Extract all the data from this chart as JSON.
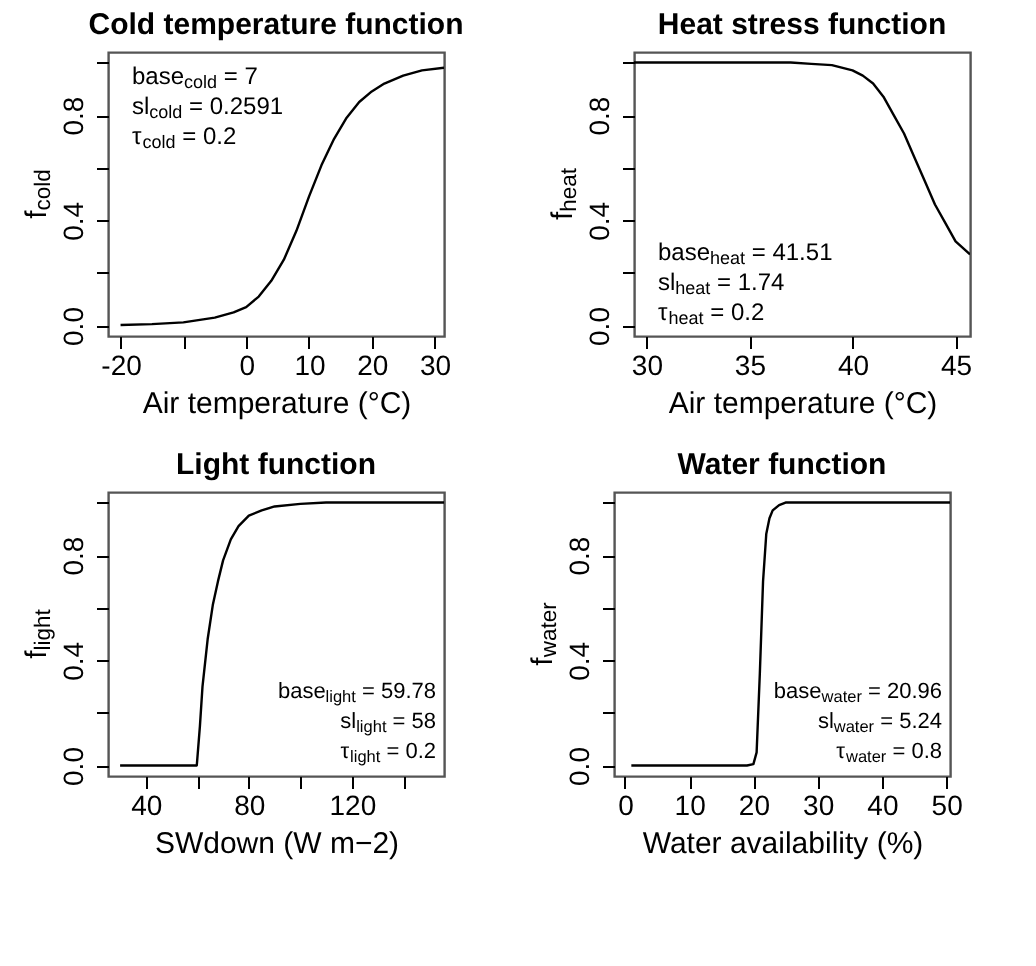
{
  "chart_data": [
    {
      "type": "line",
      "title": "Cold temperature function",
      "xlabel": "Air temperature (°C)",
      "ylabel": "f$_{cold}$",
      "series": [
        {
          "color": "#000000",
          "x": [
            -20,
            -15,
            -10,
            -5,
            -2,
            0,
            2,
            4,
            6,
            8,
            10,
            12,
            14,
            16,
            18,
            20,
            22,
            25,
            28,
            31.5
          ],
          "values": [
            0.002,
            0.005,
            0.012,
            0.03,
            0.05,
            0.07,
            0.11,
            0.17,
            0.25,
            0.36,
            0.49,
            0.61,
            0.71,
            0.79,
            0.85,
            0.89,
            0.92,
            0.95,
            0.97,
            0.98
          ]
        }
      ],
      "xlim": [
        -22,
        31.5
      ],
      "xticks": [
        -20,
        {
          "value": -10,
          "label": null
        },
        0,
        10,
        20,
        30
      ],
      "ylim": [
        -0.04,
        1.04
      ],
      "yticks": [
        {
          "value": 0,
          "label": "0.0"
        },
        {
          "value": 0.2,
          "label": null
        },
        {
          "value": 0.4,
          "label": "0.4"
        },
        {
          "value": 0.6,
          "label": null
        },
        {
          "value": 0.8,
          "label": "0.8"
        },
        {
          "value": 1.0,
          "label": null
        }
      ],
      "grid": false,
      "annotations": [
        "base$_{cold}$ = 7",
        "sl$_{cold}$ = 0.2591",
        "τ$_{cold}$ = 0.2"
      ]
    },
    {
      "type": "line",
      "title": "Heat stress function",
      "xlabel": "Air temperature (°C)",
      "ylabel": "f$_{heat}$",
      "series": [
        {
          "color": "#000000",
          "x": [
            29.4,
            32,
            35,
            37,
            38,
            39,
            40,
            40.5,
            41,
            41.5,
            42,
            42.5,
            43,
            43.5,
            44,
            44.5,
            45,
            45.7
          ],
          "values": [
            1,
            1,
            1,
            1,
            0.995,
            0.99,
            0.97,
            0.95,
            0.92,
            0.87,
            0.8,
            0.73,
            0.64,
            0.55,
            0.46,
            0.39,
            0.32,
            0.27
          ]
        }
      ],
      "xlim": [
        29.4,
        45.7
      ],
      "xticks": [
        30,
        35,
        40,
        45
      ],
      "ylim": [
        -0.04,
        1.04
      ],
      "yticks": [
        {
          "value": 0,
          "label": "0.0"
        },
        {
          "value": 0.2,
          "label": null
        },
        {
          "value": 0.4,
          "label": "0.4"
        },
        {
          "value": 0.6,
          "label": null
        },
        {
          "value": 0.8,
          "label": "0.8"
        },
        {
          "value": 1.0,
          "label": null
        }
      ],
      "grid": false,
      "annotations": [
        "base$_{heat}$ = 41.51",
        "sl$_{heat}$ = 1.74",
        "τ$_{heat}$ = 0.2"
      ]
    },
    {
      "type": "line",
      "title": "Light function",
      "xlabel": "SWdown (W m−2)",
      "ylabel": "f$_{light}$",
      "series": [
        {
          "color": "#000000",
          "x": [
            30,
            59.78,
            61,
            62,
            64,
            66,
            68,
            70,
            73,
            76,
            80,
            85,
            90,
            100,
            110,
            155.8
          ],
          "values": [
            0,
            0,
            0.15,
            0.3,
            0.48,
            0.61,
            0.7,
            0.78,
            0.86,
            0.91,
            0.95,
            0.97,
            0.985,
            0.995,
            1,
            1
          ]
        }
      ],
      "xlim": [
        25.3,
        155.8
      ],
      "xticks": [
        40,
        {
          "value": 60,
          "label": null
        },
        80,
        {
          "value": 100,
          "label": null
        },
        120,
        {
          "value": 140,
          "label": null
        }
      ],
      "ylim": [
        -0.04,
        1.04
      ],
      "yticks": [
        {
          "value": 0,
          "label": "0.0"
        },
        {
          "value": 0.2,
          "label": null
        },
        {
          "value": 0.4,
          "label": "0.4"
        },
        {
          "value": 0.6,
          "label": null
        },
        {
          "value": 0.8,
          "label": "0.8"
        },
        {
          "value": 1.0,
          "label": null
        }
      ],
      "grid": false,
      "annotations": [
        "base$_{light}$ = 59.78",
        "sl$_{light}$ = 58",
        "τ$_{light}$ = 0.2"
      ]
    },
    {
      "type": "line",
      "title": "Water function",
      "xlabel": "Water availability (%)",
      "ylabel": "f$_{water}$",
      "series": [
        {
          "color": "#000000",
          "x": [
            1,
            19,
            20,
            20.5,
            21,
            21.5,
            22,
            22.5,
            23,
            24,
            25,
            50.6
          ],
          "values": [
            0,
            0,
            0.005,
            0.05,
            0.35,
            0.7,
            0.88,
            0.94,
            0.97,
            0.99,
            1,
            1
          ]
        }
      ],
      "xlim": [
        -1.7,
        50.6
      ],
      "xticks": [
        0,
        10,
        20,
        30,
        40,
        50
      ],
      "ylim": [
        -0.04,
        1.04
      ],
      "yticks": [
        {
          "value": 0,
          "label": "0.0"
        },
        {
          "value": 0.2,
          "label": null
        },
        {
          "value": 0.4,
          "label": "0.4"
        },
        {
          "value": 0.6,
          "label": null
        },
        {
          "value": 0.8,
          "label": "0.8"
        },
        {
          "value": 1.0,
          "label": null
        }
      ],
      "grid": false,
      "annotations": [
        "base$_{water}$ = 20.96",
        "sl$_{water}$ = 5.24",
        "τ$_{water}$ = 0.8"
      ]
    }
  ]
}
